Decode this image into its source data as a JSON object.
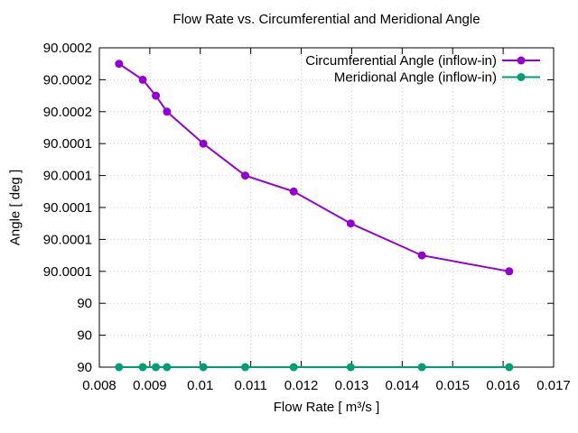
{
  "page": {
    "background_color": "#ffffff",
    "axis_color": "#000000",
    "grid_color": "#c8c8c8"
  },
  "chart_data": {
    "type": "line",
    "title": "Flow Rate vs. Circumferential and Meridional Angle",
    "xlabel": "Flow Rate [ m³/s ]",
    "ylabel": "Angle [ deg ]",
    "xlim": [
      0.008,
      0.017
    ],
    "ylim": [
      90.0,
      90.0002
    ],
    "grid": true,
    "legend_position": "top-right-inside",
    "x_ticks": {
      "values": [
        0.008,
        0.009,
        0.01,
        0.011,
        0.012,
        0.013,
        0.014,
        0.015,
        0.016,
        0.017
      ],
      "labels": [
        "0.008",
        "0.009",
        "0.01",
        "0.011",
        "0.012",
        "0.013",
        "0.014",
        "0.015",
        "0.016",
        "0.017"
      ]
    },
    "y_ticks": {
      "values": [
        90.0,
        90.00002,
        90.00004,
        90.00006,
        90.00008,
        90.0001,
        90.00012,
        90.00014,
        90.00016,
        90.00018,
        90.0002
      ],
      "labels": [
        "90",
        "90",
        "90",
        "90.0001",
        "90.0001",
        "90.0001",
        "90.0001",
        "90.0001",
        "90.0002",
        "90.0002",
        "90.0002"
      ]
    },
    "x": [
      0.00839,
      0.00886,
      0.00912,
      0.00934,
      0.01006,
      0.01089,
      0.01185,
      0.01298,
      0.01439,
      0.01612
    ],
    "series": [
      {
        "name": "Circumferential Angle (inflow-in)",
        "color": "#9400d3",
        "marker": "circle",
        "values": [
          90.00019,
          90.00018,
          90.00017,
          90.00016,
          90.00014,
          90.00012,
          90.00011,
          90.00009,
          90.00007,
          90.00006
        ]
      },
      {
        "name": "Meridional Angle (inflow-in)",
        "color": "#009e73",
        "marker": "circle",
        "values": [
          90.0,
          90.0,
          90.0,
          90.0,
          90.0,
          90.0,
          90.0,
          90.0,
          90.0,
          90.0
        ]
      }
    ]
  }
}
